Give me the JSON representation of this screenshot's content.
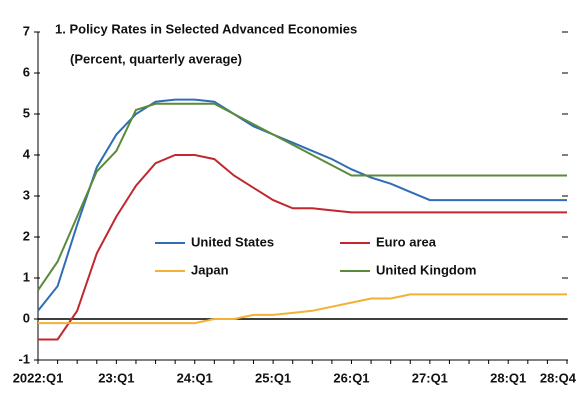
{
  "chart_data": {
    "type": "line",
    "title": "1. Policy Rates in Selected Advanced Economies",
    "subtitle": "(Percent, quarterly average)",
    "categories": [
      "2022:Q1",
      null,
      null,
      null,
      "23:Q1",
      null,
      null,
      null,
      "24:Q1",
      null,
      null,
      null,
      "25:Q1",
      null,
      null,
      null,
      "26:Q1",
      null,
      null,
      null,
      "27:Q1",
      null,
      null,
      null,
      "28:Q1",
      null,
      null,
      "28:Q4"
    ],
    "series": [
      {
        "name": "United States",
        "color": "#2f6db5",
        "values": [
          0.2,
          0.8,
          2.3,
          3.7,
          4.5,
          5.0,
          5.3,
          5.35,
          5.35,
          5.3,
          5.0,
          4.7,
          4.5,
          4.3,
          4.1,
          3.9,
          3.65,
          3.45,
          3.3,
          3.1,
          2.9,
          2.9,
          2.9,
          2.9,
          2.9,
          2.9,
          2.9,
          2.9
        ]
      },
      {
        "name": "Euro area",
        "color": "#c0282e",
        "values": [
          -0.5,
          -0.5,
          0.2,
          1.6,
          2.5,
          3.25,
          3.8,
          4.0,
          4.0,
          3.9,
          3.5,
          3.2,
          2.9,
          2.7,
          2.7,
          2.65,
          2.6,
          2.6,
          2.6,
          2.6,
          2.6,
          2.6,
          2.6,
          2.6,
          2.6,
          2.6,
          2.6,
          2.6
        ]
      },
      {
        "name": "Japan",
        "color": "#f2b134",
        "values": [
          -0.1,
          -0.1,
          -0.1,
          -0.1,
          -0.1,
          -0.1,
          -0.1,
          -0.1,
          -0.1,
          0.0,
          0.0,
          0.1,
          0.1,
          0.15,
          0.2,
          0.3,
          0.4,
          0.5,
          0.5,
          0.6,
          0.6,
          0.6,
          0.6,
          0.6,
          0.6,
          0.6,
          0.6,
          0.6
        ]
      },
      {
        "name": "United Kingdom",
        "color": "#5a8a3a",
        "values": [
          0.7,
          1.4,
          2.5,
          3.6,
          4.1,
          5.1,
          5.25,
          5.25,
          5.25,
          5.25,
          5.0,
          4.75,
          4.5,
          4.25,
          4.0,
          3.75,
          3.5,
          3.5,
          3.5,
          3.5,
          3.5,
          3.5,
          3.5,
          3.5,
          3.5,
          3.5,
          3.5,
          3.5
        ]
      }
    ],
    "ylim": [
      -1,
      7
    ],
    "yticks": [
      -1,
      0,
      1,
      2,
      3,
      4,
      5,
      6,
      7
    ]
  }
}
